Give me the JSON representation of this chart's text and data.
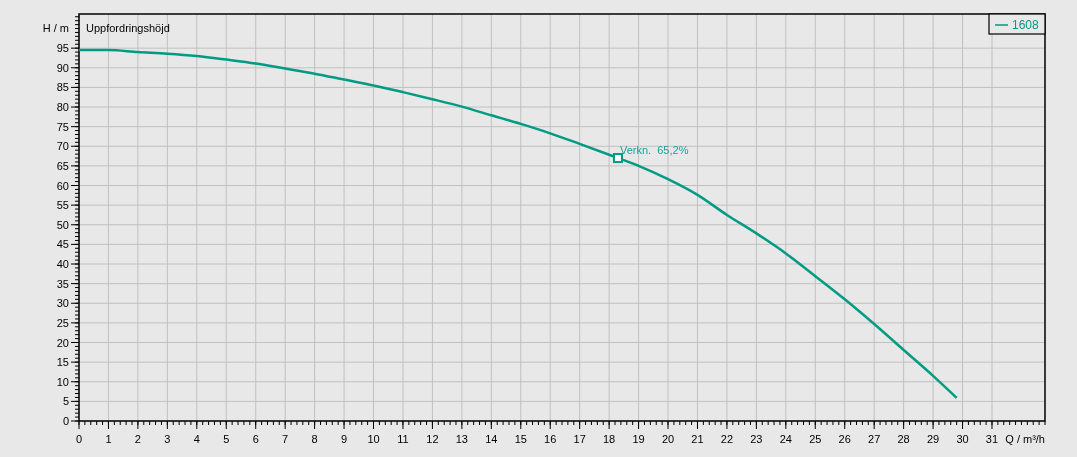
{
  "chart_data": {
    "type": "line",
    "title": "Uppfordringshöjd",
    "xlabel": "Q / m³/h",
    "ylabel": "H / m",
    "xlim": [
      0,
      32.8
    ],
    "ylim": [
      0,
      103.7
    ],
    "xticks": [
      0,
      1,
      2,
      3,
      4,
      5,
      6,
      7,
      8,
      9,
      10,
      11,
      12,
      13,
      14,
      15,
      16,
      17,
      18,
      19,
      20,
      21,
      22,
      23,
      24,
      25,
      26,
      27,
      28,
      29,
      30,
      31
    ],
    "yticks": [
      0,
      5,
      10,
      15,
      20,
      25,
      30,
      35,
      40,
      45,
      50,
      55,
      60,
      65,
      70,
      75,
      80,
      85,
      90,
      95
    ],
    "grid": true,
    "legend": "top right",
    "marker": "none",
    "line_style": "solid",
    "series": [
      {
        "name": "1608",
        "color": "#009b82",
        "x": [
          0,
          1,
          2,
          3,
          4,
          5,
          6,
          7,
          8,
          9,
          10,
          11,
          12,
          13,
          14,
          15,
          16,
          17,
          18.3,
          19,
          20,
          21,
          22,
          23,
          24,
          25,
          26,
          27,
          28,
          29,
          29.8
        ],
        "values": [
          94.5,
          94.5,
          94.0,
          93.6,
          93.0,
          92.1,
          91.1,
          89.8,
          88.5,
          87.0,
          85.5,
          83.8,
          82.0,
          80.1,
          77.9,
          75.7,
          73.3,
          70.6,
          67.0,
          65.0,
          61.6,
          57.6,
          52.5,
          47.8,
          42.7,
          36.9,
          31.0,
          24.7,
          18.1,
          11.5,
          5.9
        ]
      },
      {
        "type": "scatter",
        "marker": "square",
        "color": "#009b82",
        "x": [
          18.3
        ],
        "values": [
          67.0
        ]
      }
    ],
    "annotations": [
      {
        "text": "Verkn.  65,2%",
        "x": 18.3,
        "y": 67.0
      }
    ]
  }
}
